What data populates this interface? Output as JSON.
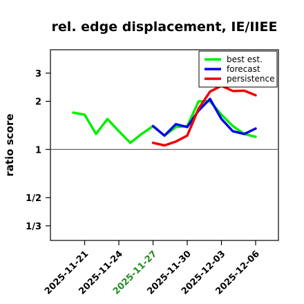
{
  "chart_data": {
    "type": "line",
    "title": "rel. edge displacement, IE/IIEE",
    "ylabel": "ratio score",
    "xlabel": "",
    "x_ticks": [
      {
        "date": "2025-11-21",
        "label": "2025-11-21",
        "color": "#000000"
      },
      {
        "date": "2025-11-24",
        "label": "2025-11-24",
        "color": "#000000"
      },
      {
        "date": "2025-11-27",
        "label": "2025-11-27",
        "color": "#228B22"
      },
      {
        "date": "2025-11-30",
        "label": "2025-11-30",
        "color": "#000000"
      },
      {
        "date": "2025-12-03",
        "label": "2025-12-03",
        "color": "#000000"
      },
      {
        "date": "2025-12-06",
        "label": "2025-12-06",
        "color": "#000000"
      }
    ],
    "xlim": [
      "2025-11-18",
      "2025-12-08"
    ],
    "y_scale": "log",
    "y_ticks": [
      {
        "value": 0.3333,
        "label": "1/3"
      },
      {
        "value": 0.5,
        "label": "1/2"
      },
      {
        "value": 1,
        "label": "1"
      },
      {
        "value": 2,
        "label": "2"
      },
      {
        "value": 3,
        "label": "3"
      }
    ],
    "ylim": [
      0.27,
      4.2
    ],
    "reference_line": 1,
    "legend_position": "top-right",
    "series": [
      {
        "name": "best est.",
        "color": "#00EE00",
        "points": [
          {
            "x": "2025-11-20",
            "y": 1.7
          },
          {
            "x": "2025-11-21",
            "y": 1.65
          },
          {
            "x": "2025-11-22",
            "y": 1.25
          },
          {
            "x": "2025-11-23",
            "y": 1.55
          },
          {
            "x": "2025-11-24",
            "y": 1.3
          },
          {
            "x": "2025-11-25",
            "y": 1.1
          },
          {
            "x": "2025-11-26",
            "y": 1.25
          },
          {
            "x": "2025-11-27",
            "y": 1.4
          },
          {
            "x": "2025-11-28",
            "y": 1.22
          },
          {
            "x": "2025-11-29",
            "y": 1.38
          },
          {
            "x": "2025-11-30",
            "y": 1.4
          },
          {
            "x": "2025-12-01",
            "y": 2.0
          },
          {
            "x": "2025-12-02",
            "y": 2.0
          },
          {
            "x": "2025-12-03",
            "y": 1.65
          },
          {
            "x": "2025-12-04",
            "y": 1.4
          },
          {
            "x": "2025-12-05",
            "y": 1.25
          },
          {
            "x": "2025-12-06",
            "y": 1.2
          }
        ]
      },
      {
        "name": "forecast",
        "color": "#0000EE",
        "points": [
          {
            "x": "2025-11-27",
            "y": 1.4
          },
          {
            "x": "2025-11-28",
            "y": 1.22
          },
          {
            "x": "2025-11-29",
            "y": 1.44
          },
          {
            "x": "2025-11-30",
            "y": 1.38
          },
          {
            "x": "2025-12-01",
            "y": 1.75
          },
          {
            "x": "2025-12-02",
            "y": 2.07
          },
          {
            "x": "2025-12-03",
            "y": 1.55
          },
          {
            "x": "2025-12-04",
            "y": 1.3
          },
          {
            "x": "2025-12-05",
            "y": 1.25
          },
          {
            "x": "2025-12-06",
            "y": 1.35
          }
        ]
      },
      {
        "name": "persistence",
        "color": "#EE0000",
        "points": [
          {
            "x": "2025-11-27",
            "y": 1.1
          },
          {
            "x": "2025-11-28",
            "y": 1.06
          },
          {
            "x": "2025-11-29",
            "y": 1.12
          },
          {
            "x": "2025-11-30",
            "y": 1.22
          },
          {
            "x": "2025-12-01",
            "y": 1.8
          },
          {
            "x": "2025-12-02",
            "y": 2.3
          },
          {
            "x": "2025-12-03",
            "y": 2.5
          },
          {
            "x": "2025-12-04",
            "y": 2.32
          },
          {
            "x": "2025-12-05",
            "y": 2.33
          },
          {
            "x": "2025-12-06",
            "y": 2.18
          }
        ]
      }
    ]
  }
}
